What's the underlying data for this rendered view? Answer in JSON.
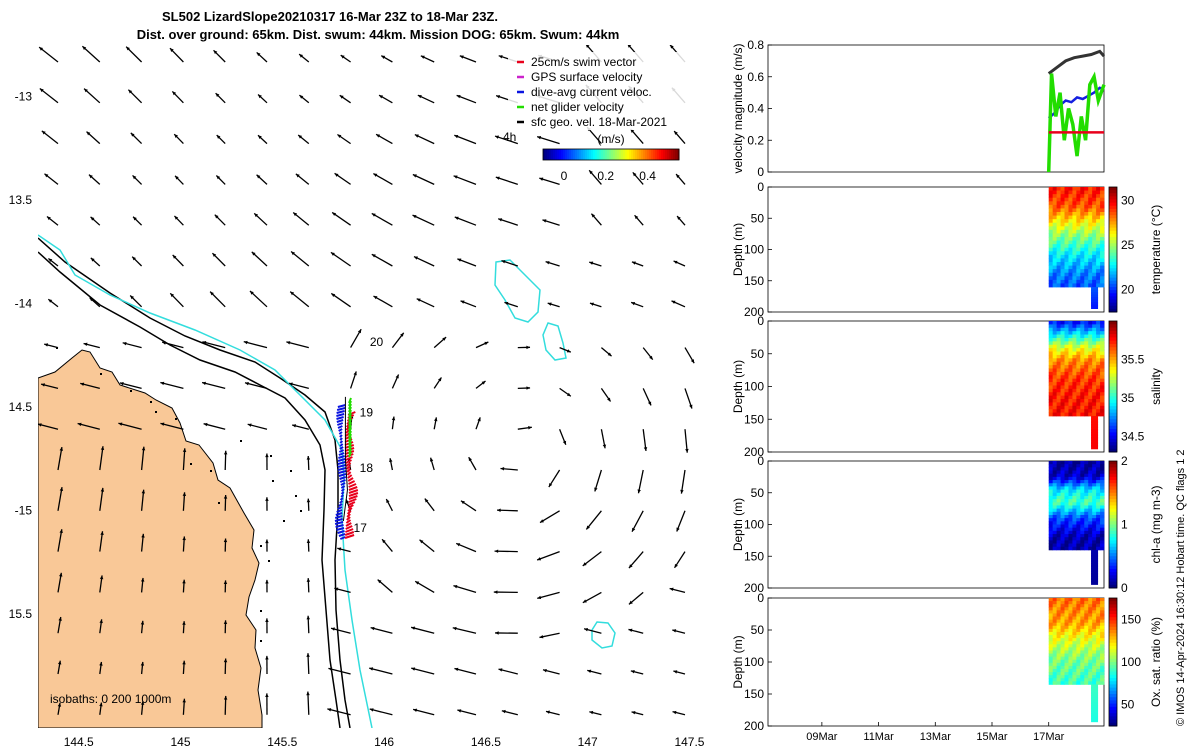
{
  "header": {
    "line1": "SL502 LizardSlope20210317 16-Mar 23Z to 18-Mar 23Z.",
    "line2": "Dist. over ground: 65km. Dist. swum: 44km. Mission DOG: 65km. Swum: 44km"
  },
  "credit": "© IMOS 14-Apr-2024 16:30:12 Hobart time. QC flags 1  2",
  "colors": {
    "land": "#f9c897",
    "coast_line": "#000000",
    "isobath_0": "#000000",
    "isobath_200": "#000000",
    "isobath_1000": "#33dddd",
    "swim_vector": "#e8001c",
    "dive_avg": "#0a14e0",
    "net_glider": "#22dd00",
    "gps_surface": "#cc22cc",
    "sfc_geo": "#000000"
  },
  "chart_data": [
    {
      "type": "map",
      "xlim": [
        144.3,
        147.65
      ],
      "ylim": [
        -16.05,
        -12.75
      ],
      "x_ticks": [
        144.5,
        145,
        145.5,
        146,
        146.5,
        147,
        147.5
      ],
      "x_tick_labels": [
        "144.5",
        "145",
        "145.5",
        "146",
        "146.5",
        "147",
        "147.5"
      ],
      "y_ticks": [
        -13,
        -13.5,
        -14,
        -14.5,
        -15,
        -15.5
      ],
      "y_tick_labels": [
        "-13",
        "13.5",
        "-14",
        "14.5",
        "-15",
        "15.5"
      ],
      "legend": {
        "placement": "top-right",
        "entries": [
          {
            "label": "25cm/s swim vector",
            "color": "#e8001c"
          },
          {
            "label": "GPS surface velocity",
            "color": "#cc22cc"
          },
          {
            "label": "dive-avg current veloc.",
            "color": "#0a14e0"
          },
          {
            "label": "net glider velocity",
            "color": "#22dd00"
          },
          {
            "label": "sfc geo. vel. 18-Mar-2021",
            "color": "#000000"
          }
        ],
        "time_label": "4h"
      },
      "colorbar": {
        "title": "(m/s)",
        "range": [
          -0.1,
          0.55
        ],
        "ticks": [
          0,
          0.2,
          0.4
        ],
        "tick_labels": [
          "0",
          "0.2",
          "0.4"
        ],
        "colormap": "jet"
      },
      "isobath_label": "isobaths: 0   200  1000m",
      "day_labels": [
        {
          "text": "20",
          "lon": 145.93,
          "lat": -14.18
        },
        {
          "text": "19",
          "lon": 145.88,
          "lat": -14.52
        },
        {
          "text": "18",
          "lon": 145.88,
          "lat": -14.79
        },
        {
          "text": "17",
          "lon": 145.85,
          "lat": -15.08
        }
      ],
      "track": [
        {
          "lon": 145.8,
          "lat": -15.05
        },
        {
          "lon": 145.82,
          "lat": -14.9
        },
        {
          "lon": 145.81,
          "lat": -14.75
        },
        {
          "lon": 145.81,
          "lat": -14.6
        },
        {
          "lon": 145.81,
          "lat": -14.45
        }
      ]
    },
    {
      "type": "line",
      "ylabel": "velocity magnitude (m/s)",
      "ylim": [
        0,
        0.8
      ],
      "y_ticks": [
        0,
        0.2,
        0.4,
        0.6,
        0.8
      ],
      "x_tick_labels": [
        "09Mar",
        "11Mar",
        "13Mar",
        "15Mar",
        "17Mar"
      ],
      "x_days": [
        9,
        11,
        13,
        15,
        17
      ],
      "xlim_days": [
        7.1,
        18.95
      ],
      "series": [
        {
          "color": "#333333",
          "x": [
            17.0,
            17.3,
            17.6,
            17.9,
            18.2,
            18.5,
            18.8,
            18.95
          ],
          "values": [
            0.62,
            0.66,
            0.7,
            0.72,
            0.73,
            0.74,
            0.76,
            0.73
          ]
        },
        {
          "color": "#1520e0",
          "x": [
            17.0,
            17.2,
            17.4,
            17.6,
            17.8,
            18.0,
            18.2,
            18.4,
            18.6,
            18.8,
            18.95
          ],
          "values": [
            0.34,
            0.37,
            0.42,
            0.45,
            0.44,
            0.47,
            0.46,
            0.48,
            0.5,
            0.53,
            0.52
          ]
        },
        {
          "color": "#22dd00",
          "x": [
            17.0,
            17.1,
            17.25,
            17.4,
            17.55,
            17.7,
            17.85,
            18.0,
            18.15,
            18.3,
            18.45,
            18.6,
            18.75,
            18.95
          ],
          "values": [
            0.0,
            0.62,
            0.35,
            0.5,
            0.2,
            0.4,
            0.3,
            0.1,
            0.35,
            0.2,
            0.55,
            0.6,
            0.45,
            0.55
          ]
        },
        {
          "color": "#e8001c",
          "x": [
            17.0,
            17.4,
            17.8,
            18.2,
            18.6,
            18.95
          ],
          "values": [
            0.25,
            0.25,
            0.25,
            0.25,
            0.25,
            0.25
          ]
        }
      ]
    },
    {
      "type": "heatmap",
      "ylabel": "Depth (m)",
      "ylim": [
        0,
        200
      ],
      "y_ticks": [
        0,
        50,
        100,
        150,
        200
      ],
      "colorbar": {
        "label": "temperature (°C)",
        "range": [
          17.5,
          31.5
        ],
        "ticks": [
          20,
          25,
          30
        ]
      },
      "profile_days": [
        17.0,
        18.95
      ],
      "max_depth": 160,
      "tail_depth": 190,
      "layers": [
        {
          "depth": 0,
          "value": 29.5
        },
        {
          "depth": 30,
          "value": 28.7
        },
        {
          "depth": 55,
          "value": 26.5
        },
        {
          "depth": 80,
          "value": 24.5
        },
        {
          "depth": 110,
          "value": 22.5
        },
        {
          "depth": 140,
          "value": 21.0
        },
        {
          "depth": 190,
          "value": 19.5
        }
      ]
    },
    {
      "type": "heatmap",
      "ylabel": "Depth (m)",
      "ylim": [
        0,
        200
      ],
      "y_ticks": [
        0,
        50,
        100,
        150,
        200
      ],
      "colorbar": {
        "label": "salinity",
        "range": [
          34.3,
          36.0
        ],
        "ticks": [
          34.5,
          35,
          35.5
        ]
      },
      "profile_days": [
        17.0,
        18.95
      ],
      "max_depth": 145,
      "tail_depth": 190,
      "layers": [
        {
          "depth": 0,
          "value": 34.5
        },
        {
          "depth": 20,
          "value": 34.9
        },
        {
          "depth": 40,
          "value": 35.3
        },
        {
          "depth": 60,
          "value": 35.55
        },
        {
          "depth": 90,
          "value": 35.7
        },
        {
          "depth": 120,
          "value": 35.75
        },
        {
          "depth": 190,
          "value": 35.8
        }
      ]
    },
    {
      "type": "heatmap",
      "ylabel": "Depth (m)",
      "ylim": [
        0,
        200
      ],
      "y_ticks": [
        0,
        50,
        100,
        150,
        200
      ],
      "colorbar": {
        "label": "chl-a (mg m-3)",
        "range": [
          0,
          2
        ],
        "ticks": [
          0,
          1,
          2
        ]
      },
      "profile_days": [
        17.0,
        18.95
      ],
      "max_depth": 140,
      "tail_depth": 190,
      "layers": [
        {
          "depth": 0,
          "value": 0.05
        },
        {
          "depth": 25,
          "value": 0.15
        },
        {
          "depth": 45,
          "value": 0.7
        },
        {
          "depth": 65,
          "value": 0.9
        },
        {
          "depth": 90,
          "value": 0.4
        },
        {
          "depth": 120,
          "value": 0.1
        },
        {
          "depth": 190,
          "value": 0.05
        }
      ]
    },
    {
      "type": "heatmap",
      "ylabel": "Depth (m)",
      "ylim": [
        0,
        200
      ],
      "y_ticks": [
        0,
        50,
        100,
        150,
        200
      ],
      "colorbar": {
        "label": "Ox. sat. ratio (%)",
        "range": [
          25,
          175
        ],
        "ticks": [
          50,
          100,
          150
        ]
      },
      "profile_days": [
        17.0,
        18.95
      ],
      "max_depth": 135,
      "tail_depth": 190,
      "layers": [
        {
          "depth": 0,
          "value": 140
        },
        {
          "depth": 40,
          "value": 132
        },
        {
          "depth": 70,
          "value": 112
        },
        {
          "depth": 100,
          "value": 98
        },
        {
          "depth": 135,
          "value": 90
        },
        {
          "depth": 190,
          "value": 85
        }
      ]
    }
  ]
}
